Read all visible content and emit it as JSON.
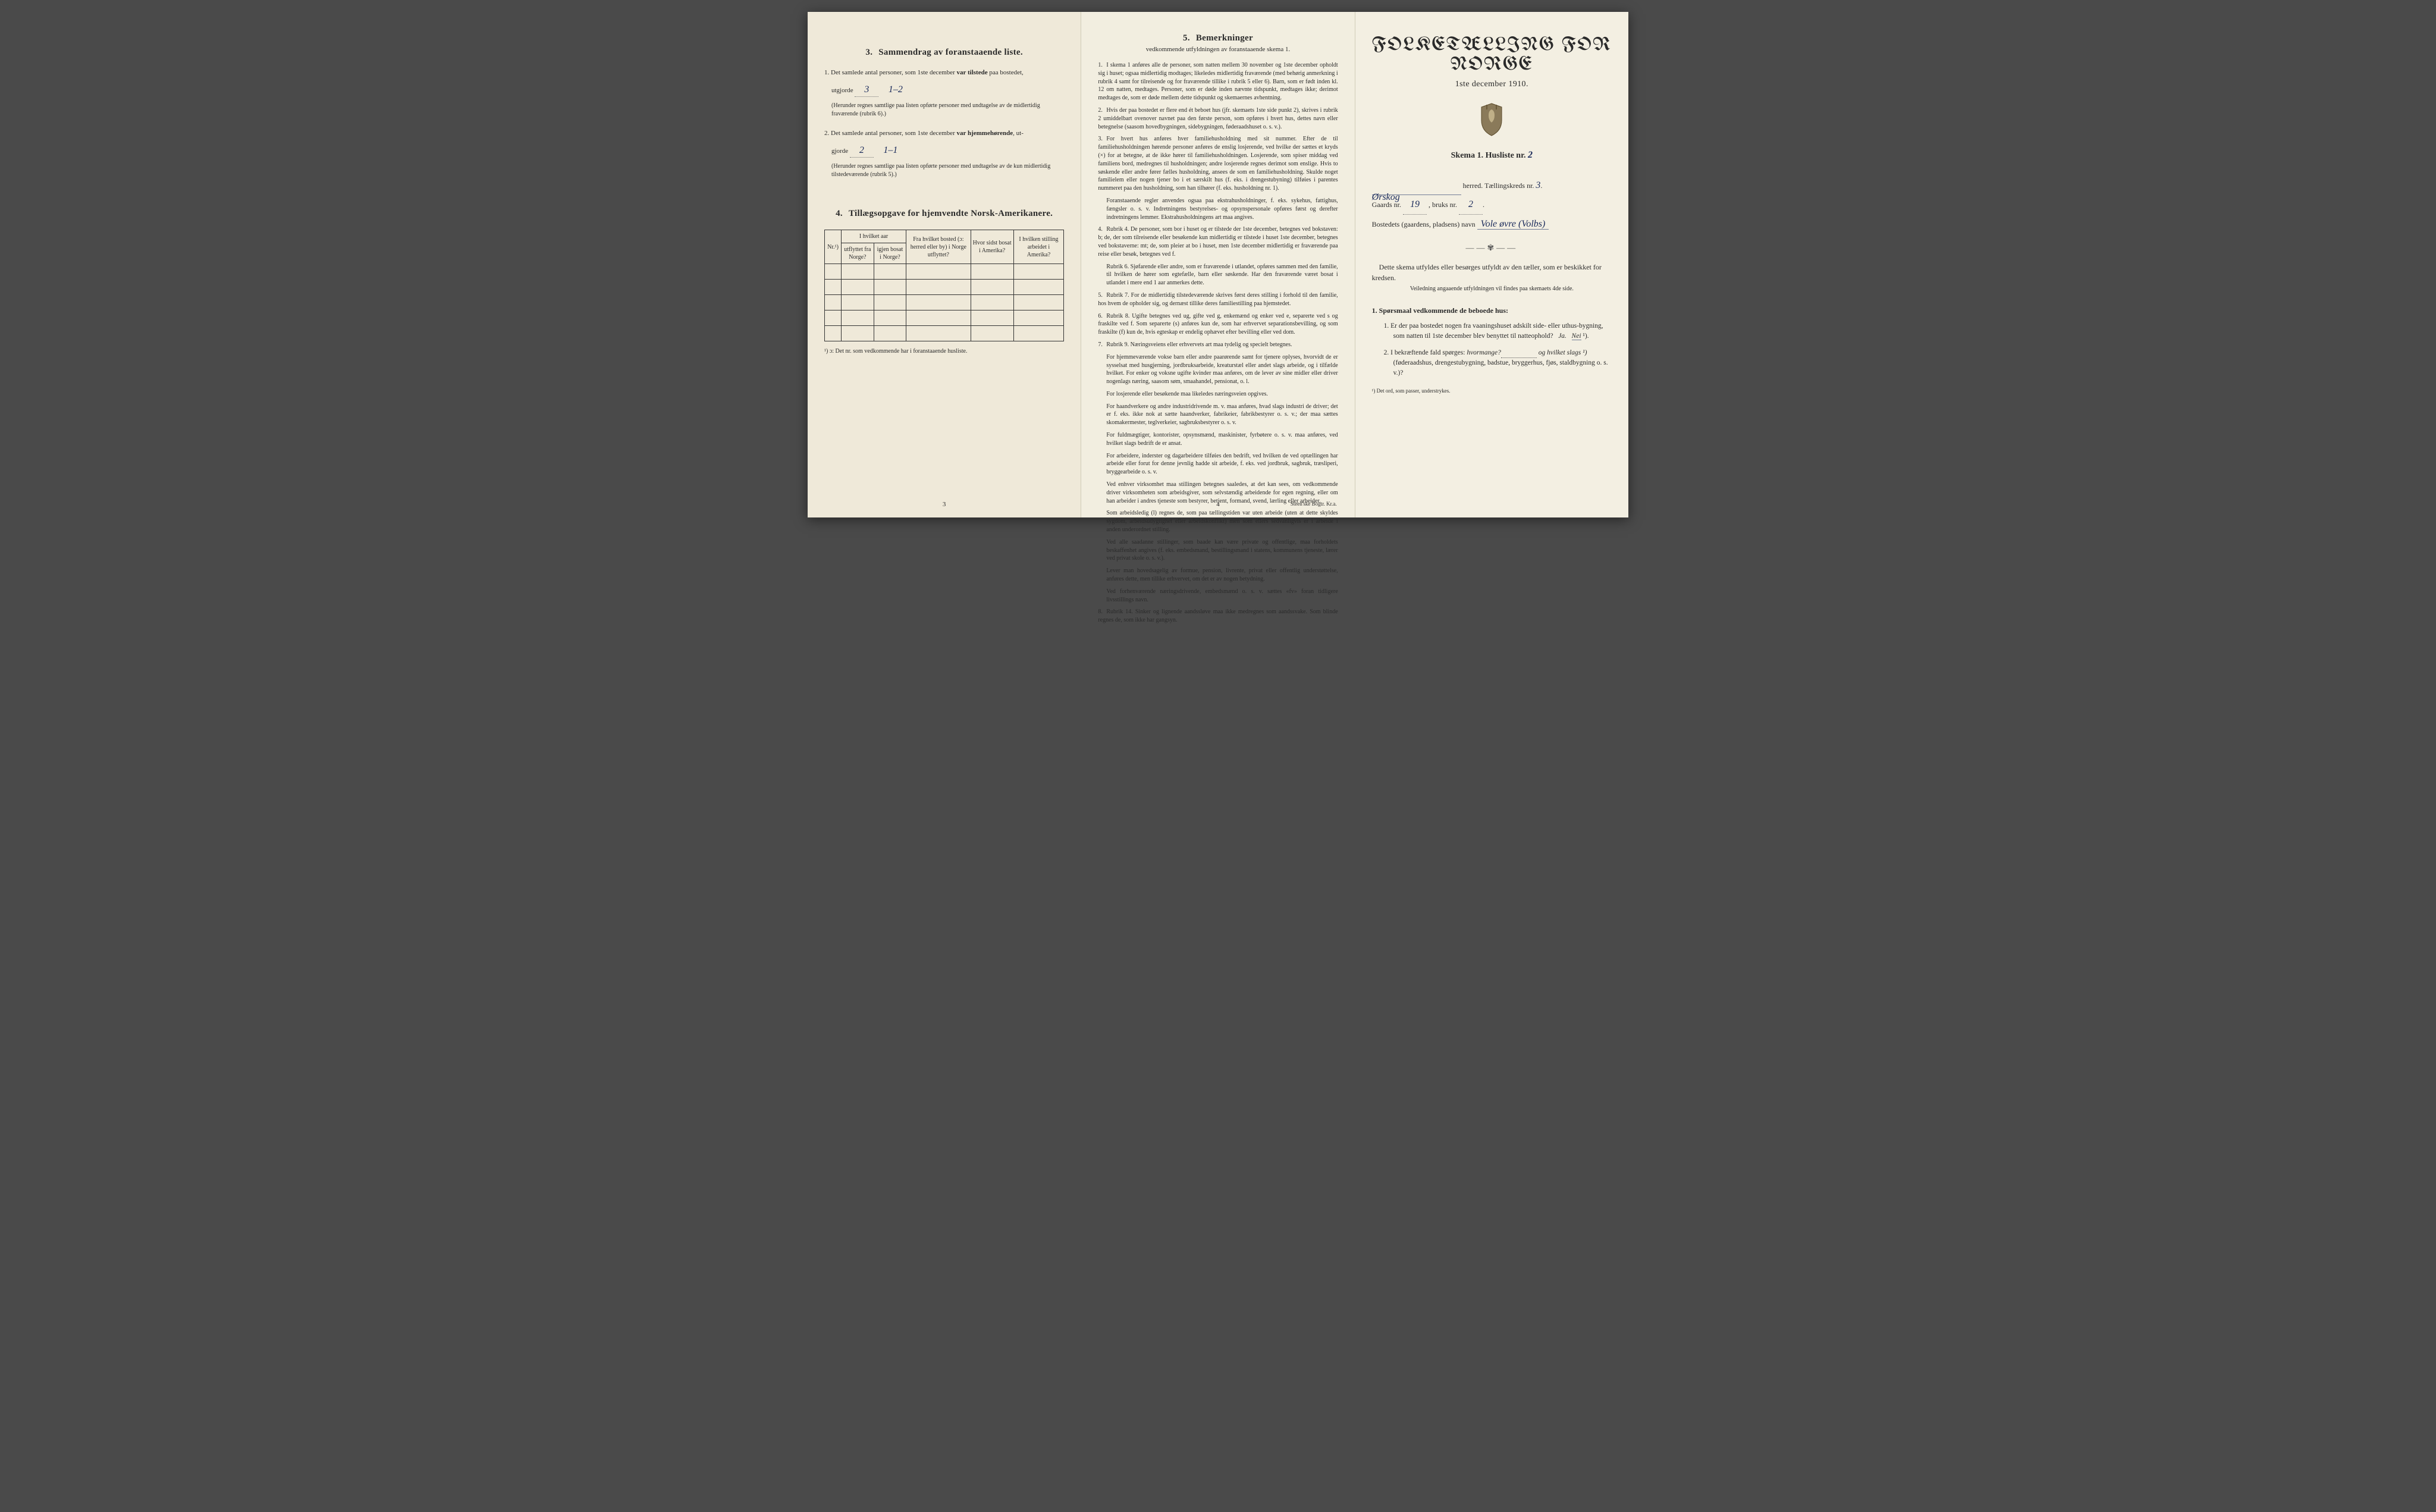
{
  "left": {
    "section3": {
      "num": "3.",
      "title": "Sammendrag av foranstaaende liste.",
      "item1_pre": "1. Det samlede antal personer, som 1ste december ",
      "item1_bold": "var tilstede",
      "item1_post": " paa bostedet,",
      "item1_line2a": "utgjorde ",
      "item1_val1": "3",
      "item1_val2": "1–2",
      "item1_note": "(Herunder regnes samtlige paa listen opførte personer med undtagelse av de midlertidig fraværende (rubrik 6).)",
      "item2_pre": "2. Det samlede antal personer, som 1ste december ",
      "item2_bold": "var hjemmehørende",
      "item2_post": ", ut-",
      "item2_line2a": "gjorde ",
      "item2_val1": "2",
      "item2_val2": "1–1",
      "item2_note": "(Herunder regnes samtlige paa listen opførte personer med undtagelse av de kun midlertidig tilstedeværende (rubrik 5).)"
    },
    "section4": {
      "num": "4.",
      "title": "Tillægsopgave for hjemvendte Norsk-Amerikanere.",
      "headers": {
        "nr": "Nr.¹)",
        "h1a": "I hvilket aar",
        "h1b_top": "utflyttet fra Norge?",
        "h1c_top": "igjen bosat i Norge?",
        "h2": "Fra hvilket bosted (ɔ: herred eller by) i Norge utflyttet?",
        "h3": "Hvor sidst bosat i Amerika?",
        "h4": "I hvilken stilling arbeidet i Amerika?"
      },
      "footnote": "¹) ɔ: Det nr. som vedkommende har i foranstaaende husliste."
    },
    "pagenum": "3"
  },
  "mid": {
    "section5": {
      "num": "5.",
      "title": "Bemerkninger",
      "subtitle": "vedkommende utfyldningen av foranstaaende skema 1."
    },
    "items": [
      {
        "n": "1.",
        "t": "I skema 1 anføres alle de personer, som natten mellem 30 november og 1ste december opholdt sig i huset; ogsaa midlertidig modtages; likeledes midlertidig fraværende (med behørig anmerkning i rubrik 4 samt for tilreisende og for fraværende tillike i rubrik 5 eller 6). Barn, som er født inden kl. 12 om natten, medtages. Personer, som er døde inden nævnte tidspunkt, medtages ikke; derimot medtages de, som er døde mellem dette tidspunkt og skemaernes avhentning."
      },
      {
        "n": "2.",
        "t": "Hvis der paa bostedet er flere end ét beboet hus (jfr. skemaets 1ste side punkt 2), skrives i rubrik 2 umiddelbart ovenover navnet paa den første person, som opføres i hvert hus, dettes navn eller betegnelse (saasom hovedbygningen, sidebygningen, føderaadshuset o. s. v.)."
      },
      {
        "n": "3.",
        "t": "For hvert hus anføres hver familiehusholdning med sit nummer. Efter de til familiehusholdningen hørende personer anføres de enslig losjerende, ved hvilke der sættes et kryds (×) for at betegne, at de ikke hører til familiehusholdningen. Losjerende, som spiser middag ved familiens bord, medregnes til husholdningen; andre losjerende regnes derimot som enslige. Hvis to søskende eller andre fører fælles husholdning, ansees de som en familiehusholdning. Skulde noget familielem eller nogen tjener bo i et særskilt hus (f. eks. i drengestubyning) tilføies i parentes nummeret paa den husholdning, som han tilhører (f. eks. husholdning nr. 1).",
        "sub": "Foranstaaende regler anvendes ogsaa paa ekstrahusholdninger, f. eks. sykehus, fattighus, fængsler o. s. v. Indretningens bestyrelses- og opsynspersonale opføres først og derefter indretningens lemmer. Ekstrahusholdningens art maa angives."
      },
      {
        "n": "4.",
        "t": "Rubrik 4. De personer, som bor i huset og er tilstede der 1ste december, betegnes ved bokstaven: b; de, der som tilreisende eller besøkende kun midlertidig er tilstede i huset 1ste december, betegnes ved bokstaverne: mt; de, som pleier at bo i huset, men 1ste december midlertidig er fraværende paa reise eller besøk, betegnes ved f.",
        "sub": "Rubrik 6. Sjøfarende eller andre, som er fraværende i utlandet, opføres sammen med den familie, til hvilken de hører som egtefælle, barn eller søskende.    Har den fraværende været bosat i utlandet i mere end 1 aar anmerkes dette."
      },
      {
        "n": "5.",
        "t": "Rubrik 7. For de midlertidig tilstedeværende skrives først deres stilling i forhold til den familie, hos hvem de opholder sig, og dernæst tillike deres familiestilling paa hjemstedet."
      },
      {
        "n": "6.",
        "t": "Rubrik 8. Ugifte betegnes ved ug, gifte ved g, enkemænd og enker ved e, separerte ved s og fraskilte ved f. Som separerte (s) anføres kun de, som har erhvervet separationsbevilling, og som fraskilte (f) kun de, hvis egteskap er endelig ophævet efter bevilling eller ved dom."
      },
      {
        "n": "7.",
        "t": "Rubrik 9. Næringsveiens eller erhvervets art maa tydelig og specielt betegnes.",
        "subs": [
          "For hjemmeværende vokse barn eller andre paarørende samt for tjenere oplyses, hvorvidt de er sysselsat med husgjerning, jordbruksarbeide, kreaturstæl eller andet slags arbeide, og i tilfælde hvilket. For enker og voksne ugifte kvinder maa anføres, om de lever av sine midler eller driver nogenlags næring, saasom søm, smaahandel, pensionat, o. l.",
          "For losjerende eller besøkende maa likeledes næringsveien opgives.",
          "For haandverkere og andre industridrivende m. v. maa anføres, hvad slags industri de driver; det er f. eks. ikke nok at sætte haandverker, fabrikeier, fabrikbestyrer o. s. v.; der maa sættes skomakermester, teglverkeier, sagbruksbestyrer o. s. v.",
          "For fuldmægtiger, kontorister, opsynsmænd, maskinister, fyrbøtere o. s. v. maa anføres, ved hvilket slags bedrift de er ansat.",
          "For arbeidere, inderster og dagarbeidere tilføies den bedrift, ved hvilken de ved optællingen har arbeide eller forut for denne jevnlig hadde sit arbeide, f. eks. ved jordbruk, sagbruk, træsliperi, bryggearbeide o. s. v.",
          "Ved enhver virksomhet maa stillingen betegnes saaledes, at det kan sees, om vedkommende driver virksomheten som arbeidsgiver, som selvstændig arbeidende for egen regning, eller om han arbeider i andres tjeneste som bestyrer, betjent, formand, svend, lærling eller arbeider.",
          "Som arbeidsledig (l) regnes de, som paa tællingstiden var uten arbeide (uten at dette skyldes sygdom, arbeidsudygtighet eller arbeidskonflikt) men som ellers sedvanligvis er i arbeide i anden underordnet stilling.",
          "Ved alle saadanne stillinger, som baade kan være private og offentlige, maa forholdets beskaffenhet angives (f. eks. embedsmand, bestillingsmand i statens, kommunens tjeneste, lærer ved privat skole o. s. v.).",
          "Lever man hovedsagelig av formue, pension, livrente, privat eller offentlig understøttelse, anføres dette, men tillike erhvervet, om det er av nogen betydning.",
          "Ved forhenværende næringsdrivende, embedsmænd o. s. v. sættes «fv» foran tidligere livsstillings navn."
        ]
      },
      {
        "n": "8.",
        "t": "Rubrik 14. Sinker og lignende aandssløve maa ikke medregnes som aandssvake. Som blinde regnes de, som ikke har gangsyn."
      }
    ],
    "pagenum": "4",
    "publisher": "Steen'ske Bogtr. Kr.a."
  },
  "right": {
    "title": "FOLKETÆLLING FOR NORGE",
    "date": "1ste december 1910.",
    "skema_label": "Skema 1.   Husliste nr.",
    "skema_nr": "2",
    "herred_label": "herred.   Tællingskreds nr.",
    "herred_hand": "Ørskog",
    "kreds_nr": "3",
    "gaard_label": "Gaards nr.",
    "gaard_nr": "19",
    "bruk_label": ", bruks nr.",
    "bruk_nr": "2",
    "bosted_label": "Bostedets (gaardens, pladsens) navn",
    "bosted_hand": "Vole øvre (Volbs)",
    "instruct": "Dette skema utfyldes eller besørges utfyldt av den tæller, som er beskikket for kredsen.",
    "instruct_sub": "Veiledning angaaende utfyldningen vil findes paa skemaets 4de side.",
    "q_head_num": "1.",
    "q_head": "Spørsmaal vedkommende de beboede hus:",
    "q1": "1. Er der paa bostedet nogen fra vaaningshuset adskilt side- eller uthus-bygning, som natten til 1ste december blev benyttet til natteophold?   Ja.   Nei ¹).",
    "q1_ja": "Ja.",
    "q1_nei": "Nei",
    "q2_pre": "2. I bekræftende fald spørges: ",
    "q2_it1": "hvormange?",
    "q2_mid": " og ",
    "q2_it2": "hvilket slags ¹)",
    "q2_post": "(føderaadshus, drengestubygning, badstue, bryggerhus, fjøs, staldbygning o. s. v.)?",
    "footnote": "¹) Det ord, som passer, understrykes."
  }
}
